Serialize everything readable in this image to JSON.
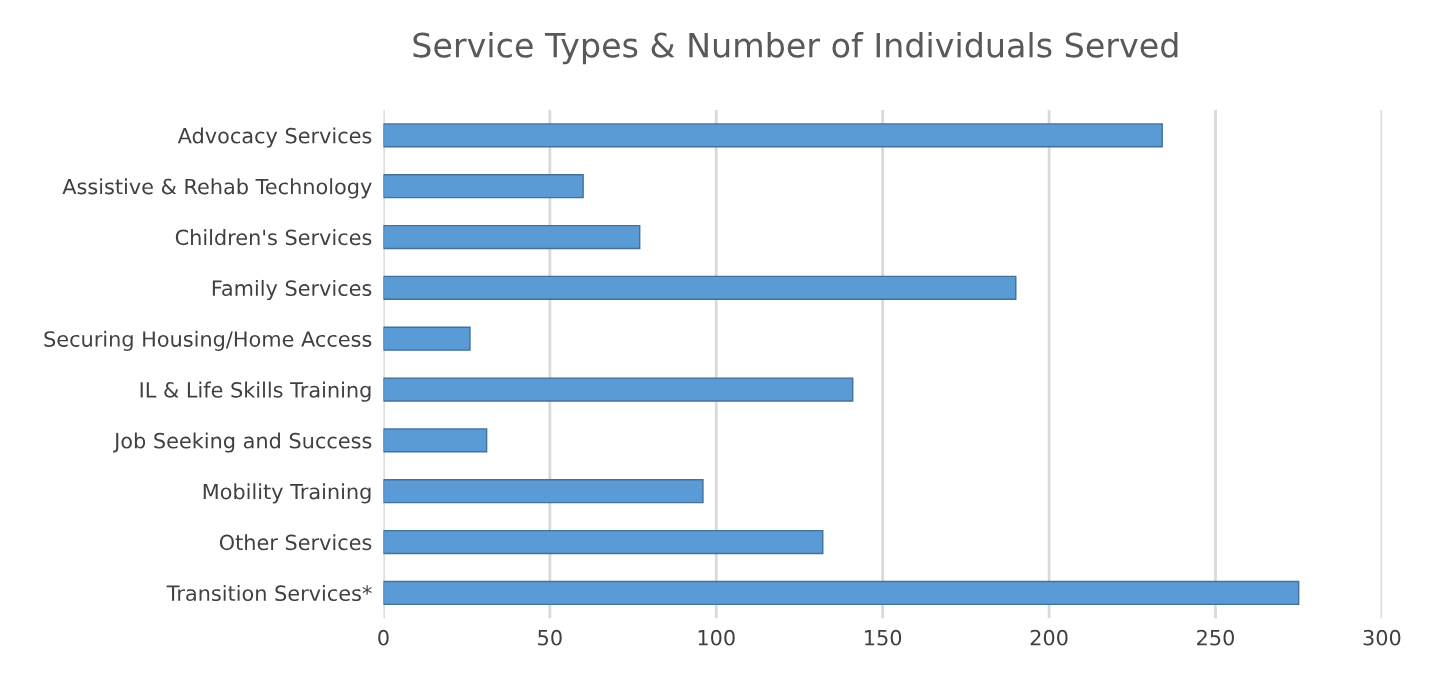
{
  "chart_data": {
    "type": "bar",
    "orientation": "horizontal",
    "title": "Service Types & Number of Individuals Served",
    "categories": [
      "Advocacy Services",
      "Assistive & Rehab Technology",
      "Children's Services",
      "Family Services",
      "Securing Housing/Home Access",
      "IL & Life Skills Training",
      "Job Seeking and Success",
      "Mobility Training",
      "Other Services",
      "Transition Services*"
    ],
    "values": [
      234,
      60,
      77,
      190,
      26,
      141,
      31,
      96,
      132,
      275
    ],
    "color": "#5b9bd5",
    "xlim": [
      0,
      300
    ],
    "xticks": [
      0,
      50,
      100,
      150,
      200,
      250,
      300
    ],
    "grid": "x",
    "legend": false
  }
}
